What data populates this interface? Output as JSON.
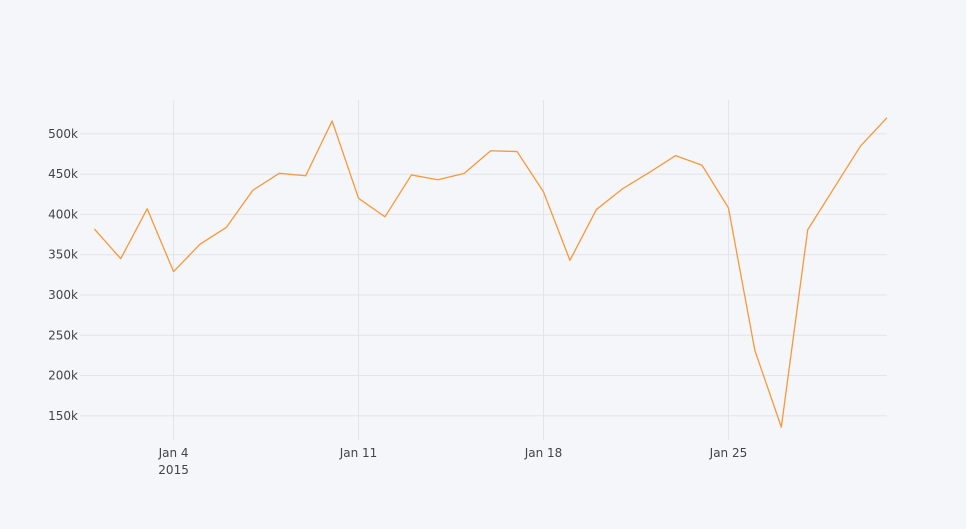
{
  "chart_data": {
    "type": "line",
    "title": "",
    "xlabel": "",
    "ylabel": "",
    "x": [
      "2015-01-01",
      "2015-01-02",
      "2015-01-03",
      "2015-01-04",
      "2015-01-05",
      "2015-01-06",
      "2015-01-07",
      "2015-01-08",
      "2015-01-09",
      "2015-01-10",
      "2015-01-11",
      "2015-01-12",
      "2015-01-13",
      "2015-01-14",
      "2015-01-15",
      "2015-01-16",
      "2015-01-17",
      "2015-01-18",
      "2015-01-19",
      "2015-01-20",
      "2015-01-21",
      "2015-01-22",
      "2015-01-23",
      "2015-01-24",
      "2015-01-25",
      "2015-01-26",
      "2015-01-27",
      "2015-01-28",
      "2015-01-29",
      "2015-01-30",
      "2015-01-31"
    ],
    "series": [
      {
        "values": [
          382000,
          345000,
          407000,
          329000,
          363000,
          384000,
          430000,
          451000,
          448000,
          516000,
          420000,
          397000,
          449000,
          443000,
          451000,
          479000,
          478000,
          428000,
          343000,
          406000,
          432000,
          452000,
          473000,
          461000,
          408000,
          231000,
          136000,
          381000,
          433000,
          485000,
          520000
        ]
      }
    ],
    "xlim": [
      "2014-12-31T11:00",
      "2015-01-31T00:00"
    ],
    "ylim": [
      120000,
      542000
    ],
    "xticks": [
      {
        "date": "2015-01-04",
        "label": "Jan 4",
        "sublabel": "2015"
      },
      {
        "date": "2015-01-11",
        "label": "Jan 11",
        "sublabel": ""
      },
      {
        "date": "2015-01-18",
        "label": "Jan 18",
        "sublabel": ""
      },
      {
        "date": "2015-01-25",
        "label": "Jan 25",
        "sublabel": ""
      }
    ],
    "yticks": [
      {
        "value": 150000,
        "label": "150k"
      },
      {
        "value": 200000,
        "label": "200k"
      },
      {
        "value": 250000,
        "label": "250k"
      },
      {
        "value": 300000,
        "label": "300k"
      },
      {
        "value": 350000,
        "label": "350k"
      },
      {
        "value": 400000,
        "label": "400k"
      },
      {
        "value": 450000,
        "label": "450k"
      },
      {
        "value": 500000,
        "label": "500k"
      }
    ],
    "grid": true,
    "legend": "none",
    "colors": {
      "line": "#f7983a",
      "grid": "#e2e4ea",
      "background": "#f5f6f9",
      "text": "#444444"
    }
  }
}
